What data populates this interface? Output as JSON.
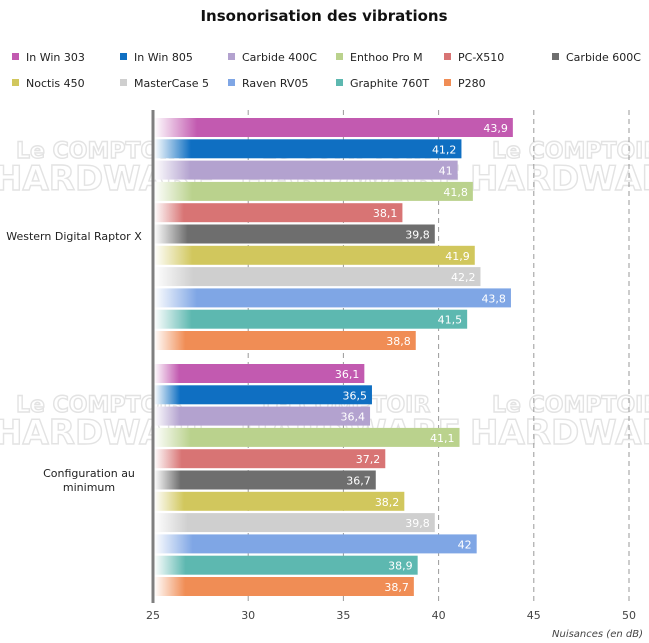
{
  "chart_data": {
    "type": "bar",
    "orientation": "horizontal",
    "title": "Insonorisation des vibrations",
    "xlabel": "Nuisances (en dB)",
    "ylabel": "",
    "xlim": [
      25,
      50
    ],
    "xticks": [
      25,
      30,
      35,
      40,
      45,
      50
    ],
    "grid": true,
    "legend_position": "top",
    "categories": [
      "Western Digital Raptor X",
      "Configuration au minimum"
    ],
    "series": [
      {
        "name": "In Win 303",
        "color": "#c25ab0",
        "values": [
          43.9,
          36.1
        ],
        "labels": [
          "43,9",
          "36,1"
        ]
      },
      {
        "name": "In Win 805",
        "color": "#0f6fc2",
        "values": [
          41.2,
          36.5
        ],
        "labels": [
          "41,2",
          "36,5"
        ]
      },
      {
        "name": "Carbide 400C",
        "color": "#b3a2cf",
        "values": [
          41.0,
          36.4
        ],
        "labels": [
          "41",
          "36,4"
        ]
      },
      {
        "name": "Enthoo Pro M",
        "color": "#bad28d",
        "values": [
          41.8,
          41.1
        ],
        "labels": [
          "41,8",
          "41,1"
        ]
      },
      {
        "name": "PC-X510",
        "color": "#d87474",
        "values": [
          38.1,
          37.2
        ],
        "labels": [
          "38,1",
          "37,2"
        ]
      },
      {
        "name": "Carbide 600C",
        "color": "#6e6e6e",
        "values": [
          39.8,
          36.7
        ],
        "labels": [
          "39,8",
          "36,7"
        ]
      },
      {
        "name": "Noctis 450",
        "color": "#d1c75d",
        "values": [
          41.9,
          38.2
        ],
        "labels": [
          "41,9",
          "38,2"
        ]
      },
      {
        "name": "MasterCase 5",
        "color": "#cfcfcf",
        "values": [
          42.2,
          39.8
        ],
        "labels": [
          "42,2",
          "39,8"
        ]
      },
      {
        "name": "Raven RV05",
        "color": "#7fa6e5",
        "values": [
          43.8,
          42.0
        ],
        "labels": [
          "43,8",
          "42"
        ]
      },
      {
        "name": "Graphite 760T",
        "color": "#5db8b0",
        "values": [
          41.5,
          38.9
        ],
        "labels": [
          "41,5",
          "38,9"
        ]
      },
      {
        "name": "P280",
        "color": "#f08d55",
        "values": [
          38.8,
          38.7
        ],
        "labels": [
          "38,8",
          "38,7"
        ]
      }
    ]
  },
  "watermark": {
    "line1": "Le COMPTOIR",
    "line2": "HARDWARE"
  }
}
